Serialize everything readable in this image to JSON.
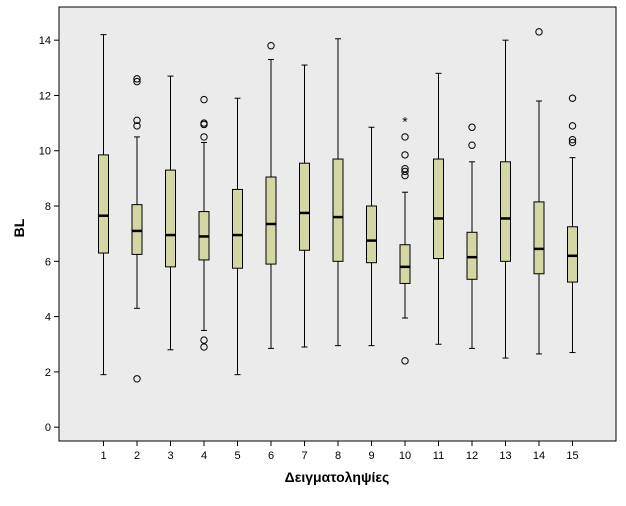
{
  "chart_data": {
    "type": "boxplot",
    "xlabel": "Δειγματοληψίες",
    "ylabel": "BL",
    "ylim": [
      -0.5,
      15.2
    ],
    "yticks": [
      0,
      2,
      4,
      6,
      8,
      10,
      12,
      14
    ],
    "grid": false,
    "colors": {
      "plot_background": "#ebebeb",
      "frame": "#000000",
      "box_fill": "#d4d6a4",
      "box_edge": "#000000",
      "median": "#000000",
      "outlier": "#000000"
    },
    "categories": [
      "1",
      "2",
      "3",
      "4",
      "5",
      "6",
      "7",
      "8",
      "9",
      "10",
      "11",
      "12",
      "13",
      "14",
      "15"
    ],
    "boxes": [
      {
        "category": "1",
        "whisker_low": 1.9,
        "q1": 6.3,
        "median": 7.65,
        "q3": 9.85,
        "whisker_high": 14.2,
        "outliers": [],
        "extremes": []
      },
      {
        "category": "2",
        "whisker_low": 4.3,
        "q1": 6.25,
        "median": 7.1,
        "q3": 8.05,
        "whisker_high": 10.5,
        "outliers": [
          1.75,
          10.9,
          11.1,
          12.5,
          12.6
        ],
        "extremes": []
      },
      {
        "category": "3",
        "whisker_low": 2.8,
        "q1": 5.8,
        "median": 6.95,
        "q3": 9.3,
        "whisker_high": 12.7,
        "outliers": [],
        "extremes": []
      },
      {
        "category": "4",
        "whisker_low": 3.5,
        "q1": 6.05,
        "median": 6.9,
        "q3": 7.8,
        "whisker_high": 10.3,
        "outliers": [
          2.9,
          3.15,
          10.5,
          10.95,
          11.0,
          11.85
        ],
        "extremes": []
      },
      {
        "category": "5",
        "whisker_low": 1.9,
        "q1": 5.75,
        "median": 6.95,
        "q3": 8.6,
        "whisker_high": 11.9,
        "outliers": [],
        "extremes": []
      },
      {
        "category": "6",
        "whisker_low": 2.85,
        "q1": 5.9,
        "median": 7.35,
        "q3": 9.05,
        "whisker_high": 13.3,
        "outliers": [
          13.8
        ],
        "extremes": []
      },
      {
        "category": "7",
        "whisker_low": 2.9,
        "q1": 6.4,
        "median": 7.75,
        "q3": 9.55,
        "whisker_high": 13.1,
        "outliers": [],
        "extremes": []
      },
      {
        "category": "8",
        "whisker_low": 2.95,
        "q1": 6.0,
        "median": 7.6,
        "q3": 9.7,
        "whisker_high": 14.05,
        "outliers": [],
        "extremes": []
      },
      {
        "category": "9",
        "whisker_low": 2.95,
        "q1": 5.95,
        "median": 6.75,
        "q3": 8.0,
        "whisker_high": 10.85,
        "outliers": [],
        "extremes": []
      },
      {
        "category": "10",
        "whisker_low": 3.95,
        "q1": 5.2,
        "median": 5.8,
        "q3": 6.6,
        "whisker_high": 8.5,
        "outliers": [
          2.4,
          9.1,
          9.25,
          9.35,
          9.85,
          10.5
        ],
        "extremes": [
          11.1
        ]
      },
      {
        "category": "11",
        "whisker_low": 3.0,
        "q1": 6.1,
        "median": 7.55,
        "q3": 9.7,
        "whisker_high": 12.8,
        "outliers": [],
        "extremes": []
      },
      {
        "category": "12",
        "whisker_low": 2.85,
        "q1": 5.35,
        "median": 6.15,
        "q3": 7.05,
        "whisker_high": 9.6,
        "outliers": [
          10.2,
          10.85
        ],
        "extremes": []
      },
      {
        "category": "13",
        "whisker_low": 2.5,
        "q1": 6.0,
        "median": 7.55,
        "q3": 9.6,
        "whisker_high": 14.0,
        "outliers": [],
        "extremes": []
      },
      {
        "category": "14",
        "whisker_low": 2.65,
        "q1": 5.55,
        "median": 6.45,
        "q3": 8.15,
        "whisker_high": 11.8,
        "outliers": [
          14.3
        ],
        "extremes": []
      },
      {
        "category": "15",
        "whisker_low": 2.7,
        "q1": 5.25,
        "median": 6.2,
        "q3": 7.25,
        "whisker_high": 9.75,
        "outliers": [
          10.3,
          10.4,
          10.9,
          11.9
        ],
        "extremes": []
      }
    ]
  }
}
